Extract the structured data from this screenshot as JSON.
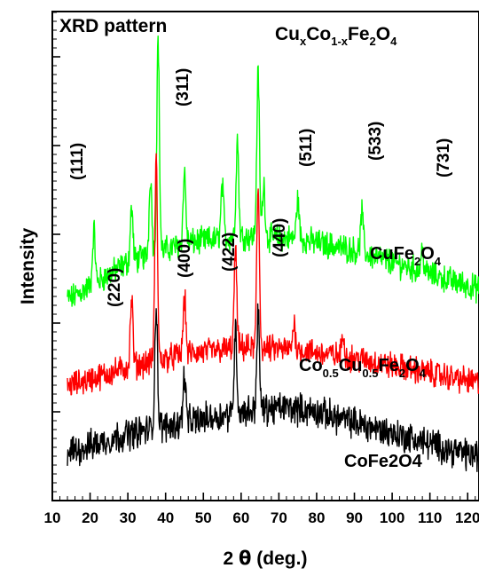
{
  "chart_data": {
    "type": "line",
    "title": "XRD pattern",
    "formula": {
      "base": [
        "Cu",
        "Co",
        "Fe",
        "O"
      ],
      "subs": [
        "x",
        "1-x",
        "2",
        "4"
      ]
    },
    "xlabel": "2 θ (deg.)",
    "ylabel": "Intensity",
    "xlim": [
      10,
      123
    ],
    "xticks": [
      10,
      20,
      30,
      40,
      50,
      60,
      70,
      80,
      90,
      100,
      110,
      120
    ],
    "grid": false,
    "y_ticks_labeled": false,
    "series": [
      {
        "name": "CuFe2O4",
        "label_parts": {
          "base": [
            "CuFe",
            "O"
          ],
          "subs": [
            "2",
            "4"
          ]
        },
        "color": "#00ff00",
        "baseline": [
          [
            15,
            228
          ],
          [
            30,
            268
          ],
          [
            45,
            290
          ],
          [
            60,
            298
          ],
          [
            75,
            295
          ],
          [
            90,
            282
          ],
          [
            105,
            262
          ],
          [
            120,
            242
          ],
          [
            123,
            238
          ]
        ],
        "noise": 12,
        "peaks": [
          [
            21,
            60
          ],
          [
            31,
            60
          ],
          [
            36,
            90
          ],
          [
            38,
            240
          ],
          [
            45,
            80
          ],
          [
            55,
            60
          ],
          [
            59,
            110
          ],
          [
            64.5,
            185
          ],
          [
            66,
            60
          ],
          [
            75,
            45
          ],
          [
            92,
            45
          ],
          [
            108,
            25
          ]
        ]
      },
      {
        "name": "Co0.5Cu0.5Fe2O4",
        "label_parts": {
          "base": [
            "Co",
            "Cu",
            "Fe",
            "O"
          ],
          "subs": [
            "0.5",
            "0.5",
            "2",
            "4"
          ]
        },
        "color": "#ff0000",
        "baseline": [
          [
            15,
            130
          ],
          [
            30,
            150
          ],
          [
            45,
            165
          ],
          [
            60,
            172
          ],
          [
            75,
            170
          ],
          [
            90,
            160
          ],
          [
            105,
            148
          ],
          [
            120,
            135
          ],
          [
            123,
            132
          ]
        ],
        "noise": 12,
        "peaks": [
          [
            31,
            75
          ],
          [
            37.5,
            225
          ],
          [
            45,
            65
          ],
          [
            58.5,
            110
          ],
          [
            64.5,
            180
          ],
          [
            74,
            30
          ],
          [
            87,
            25
          ]
        ]
      },
      {
        "name": "CoFe2O4",
        "label_parts": {
          "base": [
            "CoFe",
            "O"
          ],
          "subs": [
            "2",
            "4"
          ]
        },
        "color": "#000000",
        "baseline": [
          [
            15,
            55
          ],
          [
            30,
            75
          ],
          [
            45,
            88
          ],
          [
            60,
            100
          ],
          [
            72,
            105
          ],
          [
            80,
            100
          ],
          [
            90,
            88
          ],
          [
            105,
            70
          ],
          [
            120,
            52
          ],
          [
            123,
            50
          ]
        ],
        "noise": 14,
        "peaks": [
          [
            37.5,
            140
          ],
          [
            45,
            55
          ],
          [
            58.5,
            95
          ],
          [
            64.5,
            110
          ]
        ]
      }
    ],
    "peak_labels": [
      "(111)",
      "(311)",
      "(511)",
      "(533)",
      "(731)",
      "(220)",
      "(400)",
      "(422)",
      "(440)"
    ]
  },
  "text": {
    "title": "XRD pattern",
    "xlabel_prefix": "2 ",
    "xlabel_symbol": "θ",
    "xlabel_suffix": " (deg.)",
    "ylabel": "Intensity",
    "series_label_cofe2o4": "CoFe2O4"
  }
}
